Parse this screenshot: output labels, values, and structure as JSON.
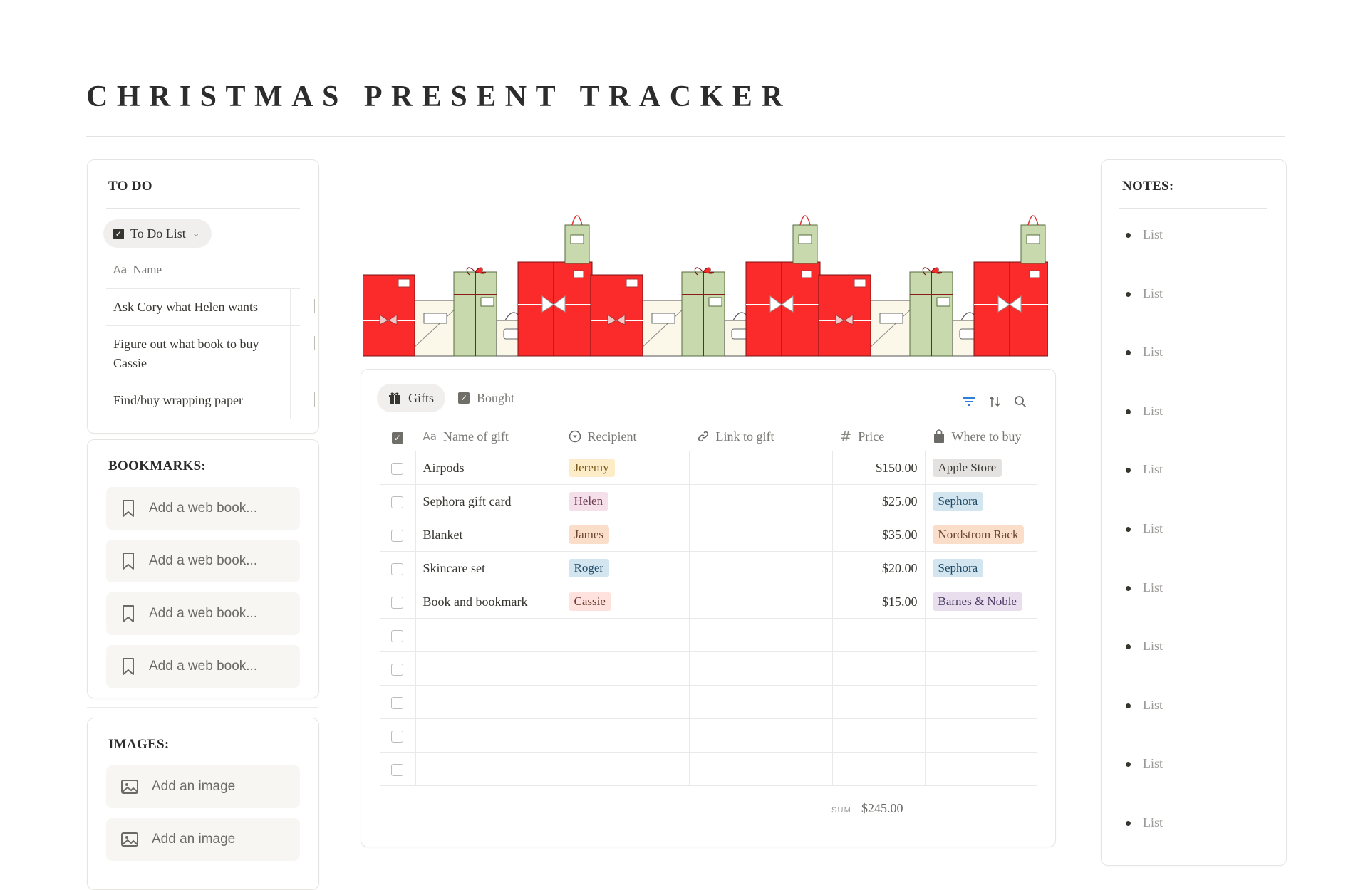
{
  "page": {
    "title": "CHRISTMAS PRESENT TRACKER"
  },
  "todo": {
    "heading": "TO DO",
    "view_label": "To Do List",
    "column_name": "Name",
    "column_icon": "Aa",
    "items": [
      "Ask Cory what Helen wants",
      "Figure out what book to buy Cassie",
      "Find/buy wrapping paper"
    ]
  },
  "bookmarks": {
    "heading": "BOOKMARKS:",
    "items": [
      "Add a web book...",
      "Add a web book...",
      "Add a web book...",
      "Add a web book..."
    ]
  },
  "images": {
    "heading": "IMAGES:",
    "items": [
      "Add an image",
      "Add an image"
    ]
  },
  "gifts": {
    "tabs": [
      {
        "label": "Gifts",
        "icon": "gift-icon",
        "active": true
      },
      {
        "label": "Bought",
        "icon": "checkbox-icon",
        "active": false
      }
    ],
    "columns": {
      "name_icon": "Aa",
      "name": "Name of gift",
      "recipient": "Recipient",
      "link": "Link to gift",
      "price_icon": "#",
      "price": "Price",
      "where": "Where to buy"
    },
    "rows": [
      {
        "name": "Airpods",
        "recipient": "Jeremy",
        "recipient_color": "#fdecc8",
        "recipient_text": "#7a5a1a",
        "price": "$150.00",
        "where": "Apple Store",
        "where_color": "#e3e2e0",
        "where_text": "#37352f"
      },
      {
        "name": "Sephora gift card",
        "recipient": "Helen",
        "recipient_color": "#f5e0e9",
        "recipient_text": "#6b3a52",
        "price": "$25.00",
        "where": "Sephora",
        "where_color": "#d3e5ef",
        "where_text": "#1f4a66"
      },
      {
        "name": "Blanket",
        "recipient": "James",
        "recipient_color": "#fadec9",
        "recipient_text": "#6b4530",
        "price": "$35.00",
        "where": "Nordstrom Rack",
        "where_color": "#fadec9",
        "where_text": "#6b4530"
      },
      {
        "name": "Skincare set",
        "recipient": "Roger",
        "recipient_color": "#d3e5ef",
        "recipient_text": "#1f4a66",
        "price": "$20.00",
        "where": "Sephora",
        "where_color": "#d3e5ef",
        "where_text": "#1f4a66"
      },
      {
        "name": "Book and bookmark",
        "recipient": "Cassie",
        "recipient_color": "#ffe2dd",
        "recipient_text": "#6b3a30",
        "price": "$15.00",
        "where": "Barnes & Noble",
        "where_color": "#e8deee",
        "where_text": "#4a3561"
      }
    ],
    "empty_rows": 5,
    "sum_label": "SUM",
    "sum_value": "$245.00"
  },
  "notes": {
    "heading": "NOTES:",
    "items": [
      "List",
      "List",
      "List",
      "List",
      "List",
      "List",
      "List",
      "List",
      "List",
      "List",
      "List"
    ]
  },
  "colors": {
    "gift_red": "#fb2b2b",
    "bag_green": "#c9d9ae",
    "box_cream": "#fbf8ea"
  }
}
